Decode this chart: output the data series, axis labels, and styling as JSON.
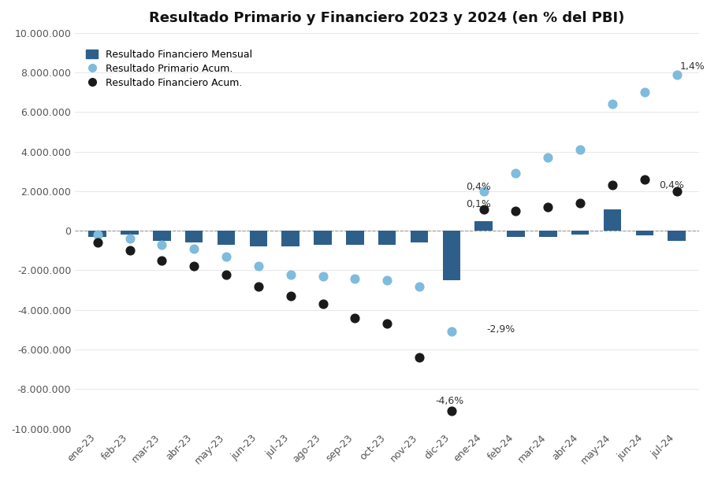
{
  "title": "Resultado Primario y Financiero 2023 y 2024 (en % del PBI)",
  "categories": [
    "ene-23",
    "feb-23",
    "mar-23",
    "abr-23",
    "may-23",
    "jun-23",
    "jul-23",
    "ago-23",
    "sep-23",
    "oct-23",
    "nov-23",
    "dic-23",
    "ene-24",
    "feb-24",
    "mar-24",
    "abr-24",
    "may-24",
    "jun-24",
    "jul-24"
  ],
  "bar_values": [
    -300000,
    -200000,
    -500000,
    -600000,
    -700000,
    -800000,
    -800000,
    -700000,
    -700000,
    -700000,
    -600000,
    -2500000,
    500000,
    -300000,
    -300000,
    -200000,
    1100000,
    -250000,
    -500000
  ],
  "primario_acum": [
    -200000,
    -400000,
    -700000,
    -900000,
    -1300000,
    -1800000,
    -2200000,
    -2300000,
    -2400000,
    -2500000,
    -2800000,
    -5100000,
    2000000,
    2900000,
    3700000,
    4100000,
    6400000,
    7000000,
    7900000
  ],
  "financiero_acum": [
    -600000,
    -1000000,
    -1500000,
    -1800000,
    -2200000,
    -2800000,
    -3300000,
    -3700000,
    -4400000,
    -4700000,
    -6400000,
    -9100000,
    1100000,
    1000000,
    1200000,
    1400000,
    2300000,
    2600000,
    2000000
  ],
  "bar_color": "#2E5F8A",
  "primario_color": "#7FBBDC",
  "financiero_color": "#1a1a1a",
  "ylim": [
    -10000000,
    10000000
  ],
  "yticks": [
    -10000000,
    -8000000,
    -6000000,
    -4000000,
    -2000000,
    0,
    2000000,
    4000000,
    6000000,
    8000000,
    10000000
  ],
  "ytick_labels": [
    "-10.000.000",
    "-8.000.000",
    "-6.000.000",
    "-4.000.000",
    "-2.000.000",
    "0",
    "2.000.000",
    "4.000.000",
    "6.000.000",
    "8.000.000",
    "10.000.000"
  ],
  "legend_bar": "Resultado Financiero Mensual",
  "legend_primario": "Resultado Primario Acum.",
  "legend_financiero": "Resultado Financiero Acum.",
  "annotations": [
    {
      "xi": 11,
      "xoffset": -0.5,
      "y": -8600000,
      "text": "-4,6%",
      "ha": "left"
    },
    {
      "xi": 12,
      "xoffset": 0.1,
      "y": -5000000,
      "text": "-2,9%",
      "ha": "left"
    },
    {
      "xi": 12,
      "xoffset": -0.55,
      "y": 2200000,
      "text": "0,4%",
      "ha": "left"
    },
    {
      "xi": 12,
      "xoffset": -0.55,
      "y": 1350000,
      "text": "0,1%",
      "ha": "left"
    },
    {
      "xi": 18,
      "xoffset": 0.1,
      "y": 8300000,
      "text": "1,4%",
      "ha": "left"
    },
    {
      "xi": 18,
      "xoffset": -0.55,
      "y": 2300000,
      "text": "0,4%",
      "ha": "left"
    }
  ],
  "background_color": "#FFFFFF",
  "title_fontsize": 13,
  "tick_fontsize": 9,
  "legend_fontsize": 9
}
